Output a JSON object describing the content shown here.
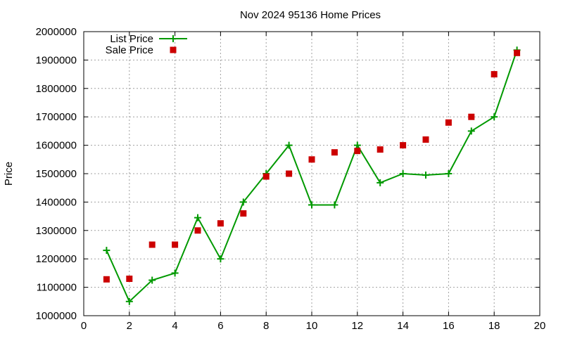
{
  "chart_data": {
    "type": "line",
    "title": "Nov 2024 95136 Home Prices",
    "xlabel": "",
    "ylabel": "Price",
    "xlim": [
      0,
      20
    ],
    "ylim": [
      1000000,
      2000000
    ],
    "x_ticks": [
      0,
      2,
      4,
      6,
      8,
      10,
      12,
      14,
      16,
      18,
      20
    ],
    "y_ticks": [
      1000000,
      1100000,
      1200000,
      1300000,
      1400000,
      1500000,
      1600000,
      1700000,
      1800000,
      1900000,
      2000000
    ],
    "grid": true,
    "legend_position": "top-left",
    "series": [
      {
        "name": "List Price",
        "style": "line-with-plus-markers",
        "color": "#009900",
        "points": [
          [
            1,
            1230000
          ],
          [
            2,
            1050000
          ],
          [
            3,
            1125000
          ],
          [
            4,
            1150000
          ],
          [
            5,
            1345000
          ],
          [
            6,
            1200000
          ],
          [
            7,
            1400000
          ],
          [
            8,
            1500000
          ],
          [
            9,
            1600000
          ],
          [
            10,
            1390000
          ],
          [
            11,
            1390000
          ],
          [
            12,
            1600000
          ],
          [
            13,
            1468000
          ],
          [
            14,
            1500000
          ],
          [
            15,
            1495000
          ],
          [
            16,
            1500000
          ],
          [
            17,
            1650000
          ],
          [
            18,
            1700000
          ],
          [
            19,
            1935000
          ]
        ]
      },
      {
        "name": "Sale Price",
        "style": "square-markers",
        "color": "#cc0000",
        "points": [
          [
            1,
            1128000
          ],
          [
            2,
            1130000
          ],
          [
            3,
            1250000
          ],
          [
            4,
            1250000
          ],
          [
            5,
            1300000
          ],
          [
            6,
            1325000
          ],
          [
            7,
            1360000
          ],
          [
            8,
            1490000
          ],
          [
            9,
            1500000
          ],
          [
            10,
            1550000
          ],
          [
            11,
            1575000
          ],
          [
            12,
            1580000
          ],
          [
            13,
            1585000
          ],
          [
            14,
            1600000
          ],
          [
            15,
            1620000
          ],
          [
            16,
            1680000
          ],
          [
            17,
            1700000
          ],
          [
            18,
            1850000
          ],
          [
            19,
            1925000
          ]
        ]
      }
    ]
  }
}
